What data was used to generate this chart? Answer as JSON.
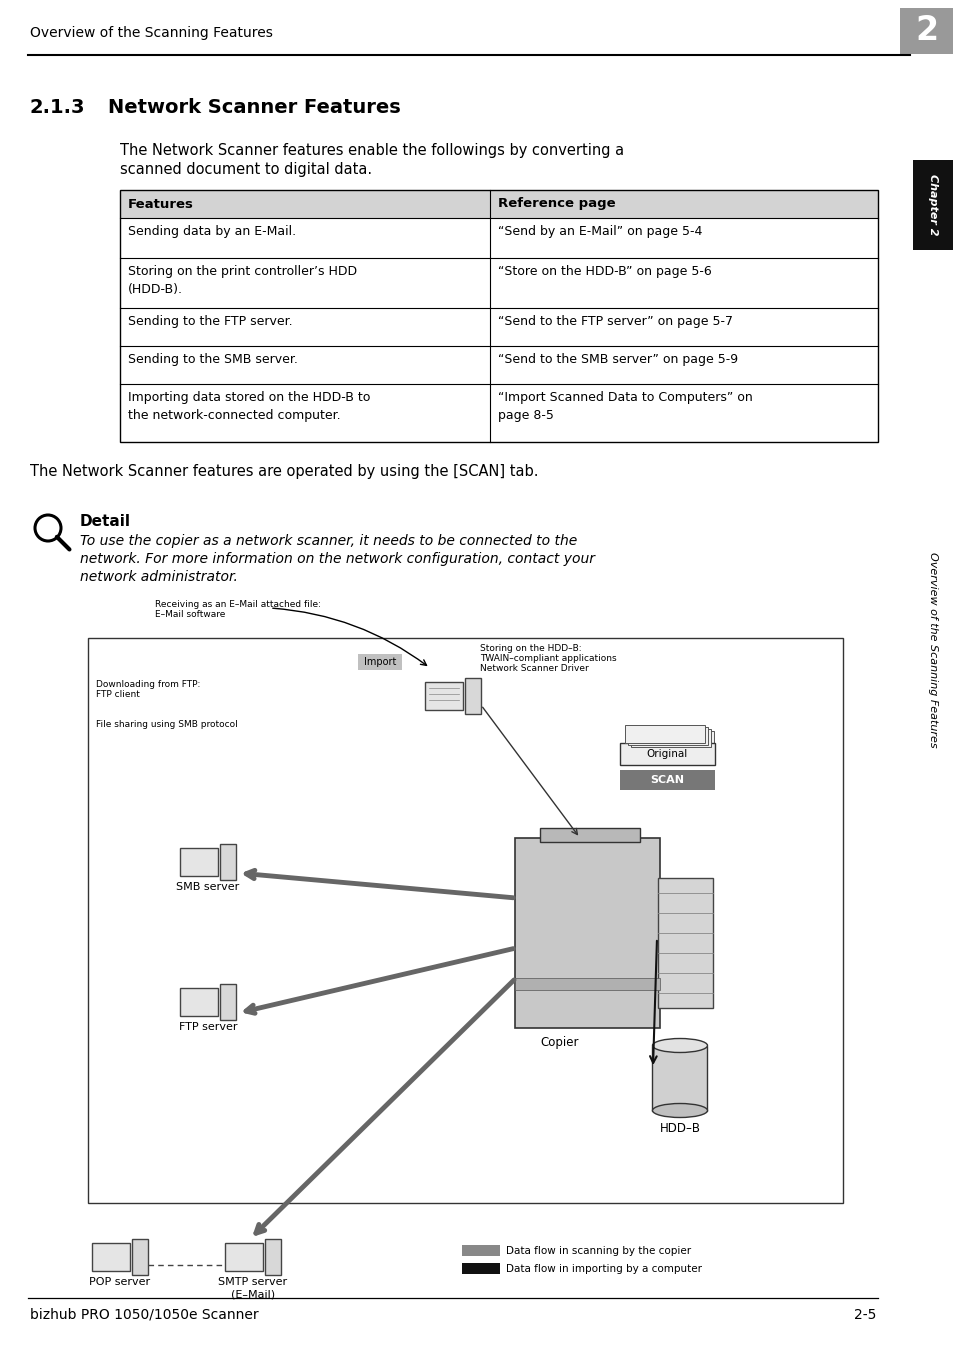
{
  "page_title": "Overview of the Scanning Features",
  "chapter_num": "2",
  "section_num": "2.1.3",
  "section_title": "Network Scanner Features",
  "intro_text_1": "The Network Scanner features enable the followings by converting a",
  "intro_text_2": "scanned document to digital data.",
  "table_headers": [
    "Features",
    "Reference page"
  ],
  "table_rows": [
    [
      "Sending data by an E-Mail.",
      "“Send by an E-Mail” on page 5-4"
    ],
    [
      "Storing on the print controller’s HDD\n(HDD-B).",
      "“Store on the HDD-B” on page 5-6"
    ],
    [
      "Sending to the FTP server.",
      "“Send to the FTP server” on page 5-7"
    ],
    [
      "Sending to the SMB server.",
      "“Send to the SMB server” on page 5-9"
    ],
    [
      "Importing data stored on the HDD-B to\nthe network-connected computer.",
      "“Import Scanned Data to Computers” on\npage 8-5"
    ]
  ],
  "scan_text": "The Network Scanner features are operated by using the [SCAN] tab.",
  "detail_title": "Detail",
  "detail_text_1": "To use the copier as a network scanner, it needs to be connected to the",
  "detail_text_2": "network. For more information on the network configuration, contact your",
  "detail_text_3": "network administrator.",
  "footer_left": "bizhub PRO 1050/1050e Scanner",
  "footer_right": "2-5",
  "sidebar_text": "Overview of the Scanning Features",
  "sidebar_chapter": "Chapter 2",
  "bg_color": "#ffffff",
  "header_line_color": "#000000",
  "table_header_bg": "#d3d3d3",
  "table_border_color": "#000000",
  "chapter_box_color": "#999999",
  "sidebar_dark_bg": "#1a1a1a",
  "sidebar_light_text": "#ffffff",
  "sidebar_text_color": "#000000"
}
